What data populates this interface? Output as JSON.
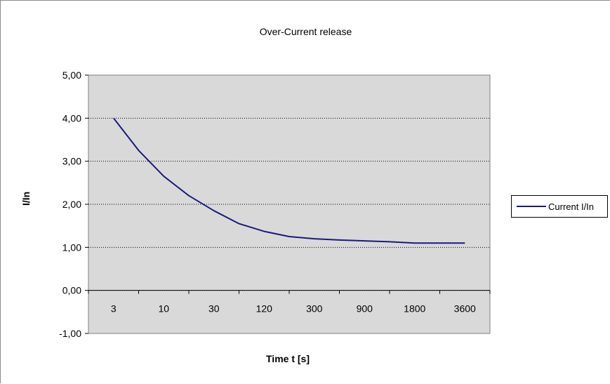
{
  "chart_data": {
    "type": "line",
    "title": "Over-Current release",
    "xlabel": "Time t [s]",
    "ylabel": "I/In",
    "categories": [
      "3",
      "10",
      "30",
      "120",
      "300",
      "900",
      "1800",
      "3600"
    ],
    "y_ticks": [
      "5,00",
      "4,00",
      "3,00",
      "2,00",
      "1,00",
      "0,00",
      "-1,00"
    ],
    "ylim": [
      -1,
      5
    ],
    "grid": true,
    "legend_position": "right",
    "series": [
      {
        "name": "Current I/In",
        "color": "#1a1a80",
        "points": [
          [
            0,
            4.0
          ],
          [
            0.5,
            3.25
          ],
          [
            1,
            2.65
          ],
          [
            1.5,
            2.2
          ],
          [
            2,
            1.85
          ],
          [
            2.5,
            1.55
          ],
          [
            3,
            1.37
          ],
          [
            3.5,
            1.25
          ],
          [
            4,
            1.2
          ],
          [
            4.5,
            1.17
          ],
          [
            5,
            1.15
          ],
          [
            5.5,
            1.13
          ],
          [
            6,
            1.1
          ],
          [
            6.5,
            1.1
          ],
          [
            7,
            1.1
          ]
        ]
      }
    ]
  }
}
